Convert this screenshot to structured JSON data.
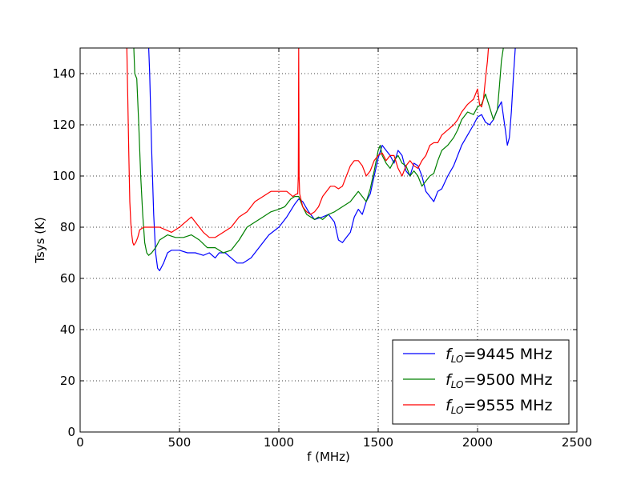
{
  "chart_data": {
    "type": "line",
    "title": "",
    "xlabel": "f (MHz)",
    "ylabel": "Tsys (K)",
    "xlim": [
      0,
      2500
    ],
    "ylim": [
      0,
      150
    ],
    "xticks": [
      0,
      500,
      1000,
      1500,
      2000,
      2500
    ],
    "yticks": [
      0,
      20,
      40,
      60,
      80,
      100,
      120,
      140
    ],
    "grid": true,
    "legend_position": "lower-right",
    "series": [
      {
        "name": "f_LO=9445 MHz",
        "legend_prefix": "f",
        "legend_sub": "LO",
        "legend_suffix": "=9445 MHz",
        "color": "#0000ff",
        "x": [
          345,
          350,
          360,
          370,
          380,
          390,
          400,
          420,
          440,
          460,
          500,
          540,
          580,
          620,
          650,
          680,
          700,
          730,
          760,
          790,
          820,
          860,
          900,
          950,
          1000,
          1040,
          1080,
          1100,
          1120,
          1150,
          1180,
          1220,
          1250,
          1280,
          1300,
          1320,
          1340,
          1360,
          1380,
          1400,
          1420,
          1440,
          1460,
          1480,
          1500,
          1520,
          1540,
          1560,
          1580,
          1600,
          1620,
          1640,
          1660,
          1680,
          1700,
          1720,
          1740,
          1760,
          1780,
          1800,
          1820,
          1850,
          1880,
          1900,
          1920,
          1950,
          1980,
          2000,
          2020,
          2040,
          2060,
          2080,
          2100,
          2120,
          2140,
          2150,
          2160,
          2170,
          2180,
          2190
        ],
        "y": [
          150,
          140,
          110,
          85,
          70,
          64,
          63,
          66,
          70,
          71,
          71,
          70,
          70,
          69,
          70,
          68,
          70,
          70,
          68,
          66,
          66,
          68,
          72,
          77,
          80,
          84,
          89,
          91,
          90,
          86,
          83,
          84,
          85,
          82,
          75,
          74,
          76,
          78,
          84,
          87,
          85,
          90,
          93,
          100,
          107,
          112,
          110,
          108,
          105,
          110,
          108,
          102,
          100,
          105,
          104,
          100,
          94,
          92,
          90,
          94,
          95,
          100,
          104,
          108,
          112,
          116,
          120,
          123,
          124,
          121,
          120,
          122,
          126,
          129,
          118,
          112,
          115,
          125,
          138,
          150
        ]
      },
      {
        "name": "f_LO=9500 MHz",
        "legend_prefix": "f",
        "legend_sub": "LO",
        "legend_suffix": "=9500 MHz",
        "color": "#008000",
        "x": [
          270,
          275,
          285,
          295,
          305,
          315,
          325,
          335,
          345,
          360,
          380,
          400,
          440,
          480,
          520,
          560,
          600,
          640,
          680,
          720,
          760,
          800,
          840,
          880,
          920,
          960,
          1000,
          1030,
          1060,
          1080,
          1100,
          1110,
          1120,
          1140,
          1160,
          1180,
          1200,
          1220,
          1250,
          1280,
          1320,
          1360,
          1380,
          1400,
          1420,
          1440,
          1460,
          1480,
          1500,
          1510,
          1520,
          1540,
          1560,
          1580,
          1600,
          1620,
          1640,
          1660,
          1680,
          1700,
          1720,
          1740,
          1760,
          1780,
          1800,
          1820,
          1850,
          1880,
          1900,
          1920,
          1950,
          1980,
          2000,
          2020,
          2040,
          2060,
          2080,
          2100,
          2110,
          2120,
          2130
        ],
        "y": [
          150,
          140,
          138,
          120,
          100,
          85,
          74,
          70,
          69,
          70,
          72,
          75,
          77,
          76,
          76,
          77,
          75,
          72,
          72,
          70,
          71,
          75,
          80,
          82,
          84,
          86,
          87,
          88,
          91,
          92,
          92,
          90,
          88,
          85,
          84,
          83,
          84,
          83,
          85,
          86,
          88,
          90,
          92,
          94,
          92,
          90,
          95,
          102,
          110,
          112,
          108,
          105,
          103,
          106,
          108,
          105,
          104,
          100,
          102,
          100,
          96,
          98,
          100,
          101,
          106,
          110,
          112,
          115,
          118,
          122,
          125,
          124,
          127,
          128,
          132,
          127,
          122,
          126,
          135,
          145,
          150
        ]
      },
      {
        "name": "f_LO=9555 MHz",
        "legend_prefix": "f",
        "legend_sub": "LO",
        "legend_suffix": "=9555 MHz",
        "color": "#ff0000",
        "x": [
          235,
          240,
          245,
          250,
          255,
          260,
          265,
          270,
          280,
          290,
          300,
          320,
          350,
          380,
          400,
          430,
          460,
          500,
          530,
          560,
          580,
          600,
          620,
          650,
          680,
          720,
          760,
          800,
          840,
          880,
          920,
          960,
          1000,
          1040,
          1070,
          1090,
          1095,
          1098,
          1100,
          1102,
          1105,
          1120,
          1140,
          1160,
          1180,
          1200,
          1220,
          1240,
          1260,
          1280,
          1300,
          1320,
          1340,
          1360,
          1380,
          1400,
          1420,
          1440,
          1460,
          1480,
          1500,
          1520,
          1540,
          1560,
          1580,
          1600,
          1620,
          1640,
          1660,
          1680,
          1700,
          1720,
          1740,
          1760,
          1780,
          1800,
          1820,
          1850,
          1880,
          1900,
          1920,
          1950,
          1980,
          2000,
          2010,
          2020,
          2030,
          2040,
          2050,
          2055
        ],
        "y": [
          150,
          130,
          108,
          90,
          82,
          77,
          74,
          73,
          74,
          76,
          79,
          80,
          80,
          80,
          80,
          79,
          78,
          80,
          82,
          84,
          82,
          80,
          78,
          76,
          76,
          78,
          80,
          84,
          86,
          90,
          92,
          94,
          94,
          94,
          92,
          93,
          93,
          100,
          150,
          100,
          93,
          88,
          86,
          85,
          86,
          88,
          92,
          94,
          96,
          96,
          95,
          96,
          100,
          104,
          106,
          106,
          104,
          100,
          102,
          106,
          108,
          109,
          106,
          108,
          108,
          103,
          100,
          104,
          106,
          104,
          103,
          106,
          108,
          112,
          113,
          113,
          116,
          118,
          120,
          122,
          125,
          128,
          130,
          134,
          128,
          127,
          130,
          138,
          145,
          150
        ]
      }
    ]
  }
}
